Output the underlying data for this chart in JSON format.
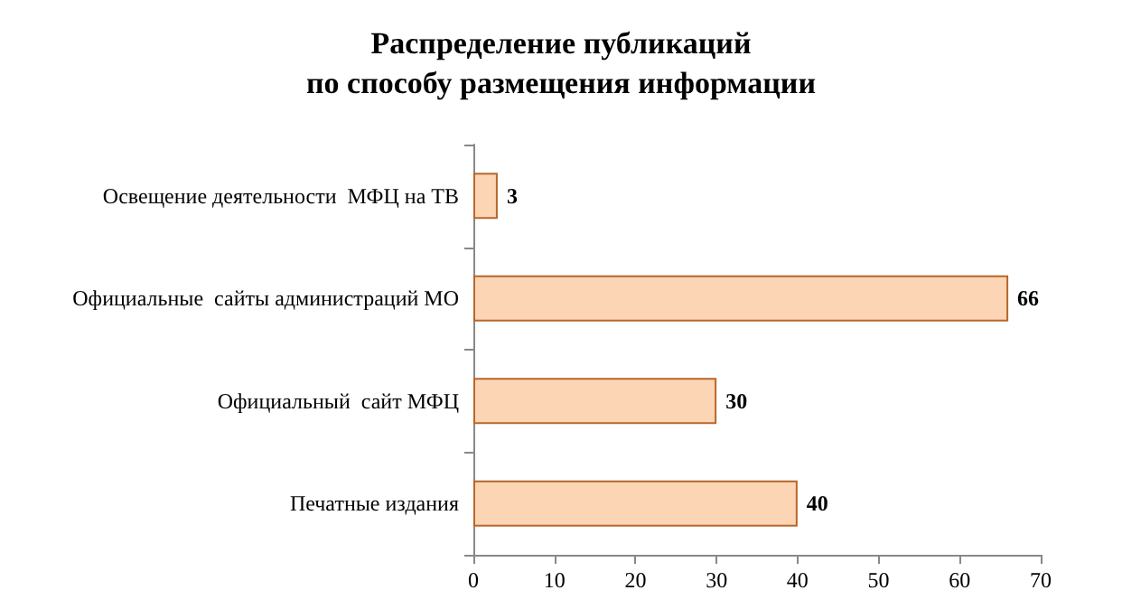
{
  "chart_data": {
    "type": "bar",
    "orientation": "horizontal",
    "title": "Распределение публикаций\nпо способу размещения информации",
    "categories": [
      "Освещение деятельности  МФЦ на ТВ",
      "Официальные  сайты администраций МО",
      "Официальный  сайт МФЦ",
      "Печатные издания"
    ],
    "values": [
      3,
      66,
      30,
      40
    ],
    "color": "#fcd5b4",
    "xlim": [
      0,
      70
    ],
    "xticks": [
      0,
      10,
      20,
      30,
      40,
      50,
      60,
      70
    ],
    "grid": false,
    "data_labels": true
  }
}
